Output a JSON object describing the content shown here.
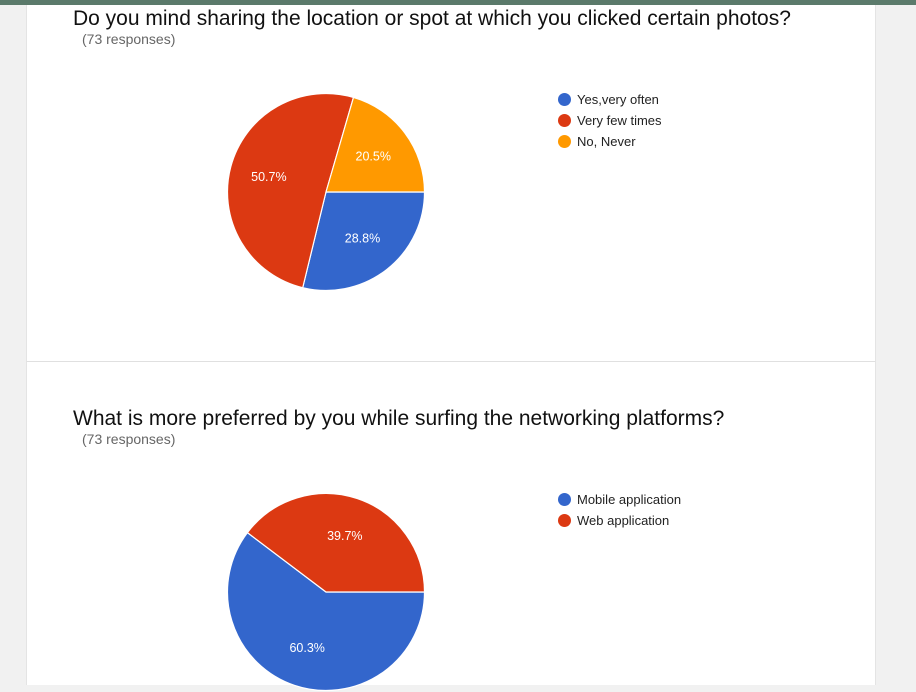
{
  "chart_data": [
    {
      "type": "pie",
      "title": "Do you mind sharing the location or spot at which you clicked certain photos?",
      "subtitle": "(73 responses)",
      "categories": [
        "Yes,very often",
        "Very few times",
        "No, Never"
      ],
      "values": [
        28.8,
        50.7,
        20.5
      ],
      "labels": [
        "28.8%",
        "50.7%",
        "20.5%"
      ],
      "colors": [
        "#3366cc",
        "#dc3912",
        "#ff9900"
      ],
      "legend": "right"
    },
    {
      "type": "pie",
      "title": "What is more preferred by you while surfing the networking platforms?",
      "subtitle": "(73 responses)",
      "categories": [
        "Mobile application",
        "Web application"
      ],
      "values": [
        60.3,
        39.7
      ],
      "labels": [
        "60.3%",
        "39.7%"
      ],
      "colors": [
        "#3366cc",
        "#dc3912"
      ],
      "legend": "right"
    }
  ]
}
